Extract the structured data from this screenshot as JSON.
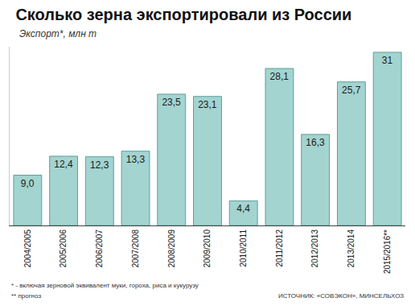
{
  "chart_data": {
    "type": "bar",
    "title": "Сколько зерна экспортировали из России",
    "subtitle": "Экспорт*, млн т",
    "categories": [
      "2004/2005",
      "2005/2006",
      "2006/2007",
      "2007/2008",
      "2008/2009",
      "2009/2010",
      "2010/2011",
      "2011/2012",
      "2012/2013",
      "2013/2014",
      "2015/2016**"
    ],
    "values": [
      9.0,
      12.4,
      12.3,
      13.3,
      23.5,
      23.1,
      4.4,
      28.1,
      16.3,
      25.7,
      31
    ],
    "value_labels": [
      "9,0",
      "12,4",
      "12,3",
      "13,3",
      "23,5",
      "23,1",
      "4,4",
      "28,1",
      "16,3",
      "25,7",
      "31"
    ],
    "data_labels": true,
    "color": "#a3d4d0",
    "ylim": [
      0,
      32
    ],
    "tick_labels": "x",
    "grid": false,
    "annotations": [
      "* - включая зерновой эквивалент муки, гороха, риса и кукурузу",
      "** прогноз",
      "ИСТОЧНИК: «СОВЭКОН», МИНСЕЛЬХОЗ"
    ]
  }
}
